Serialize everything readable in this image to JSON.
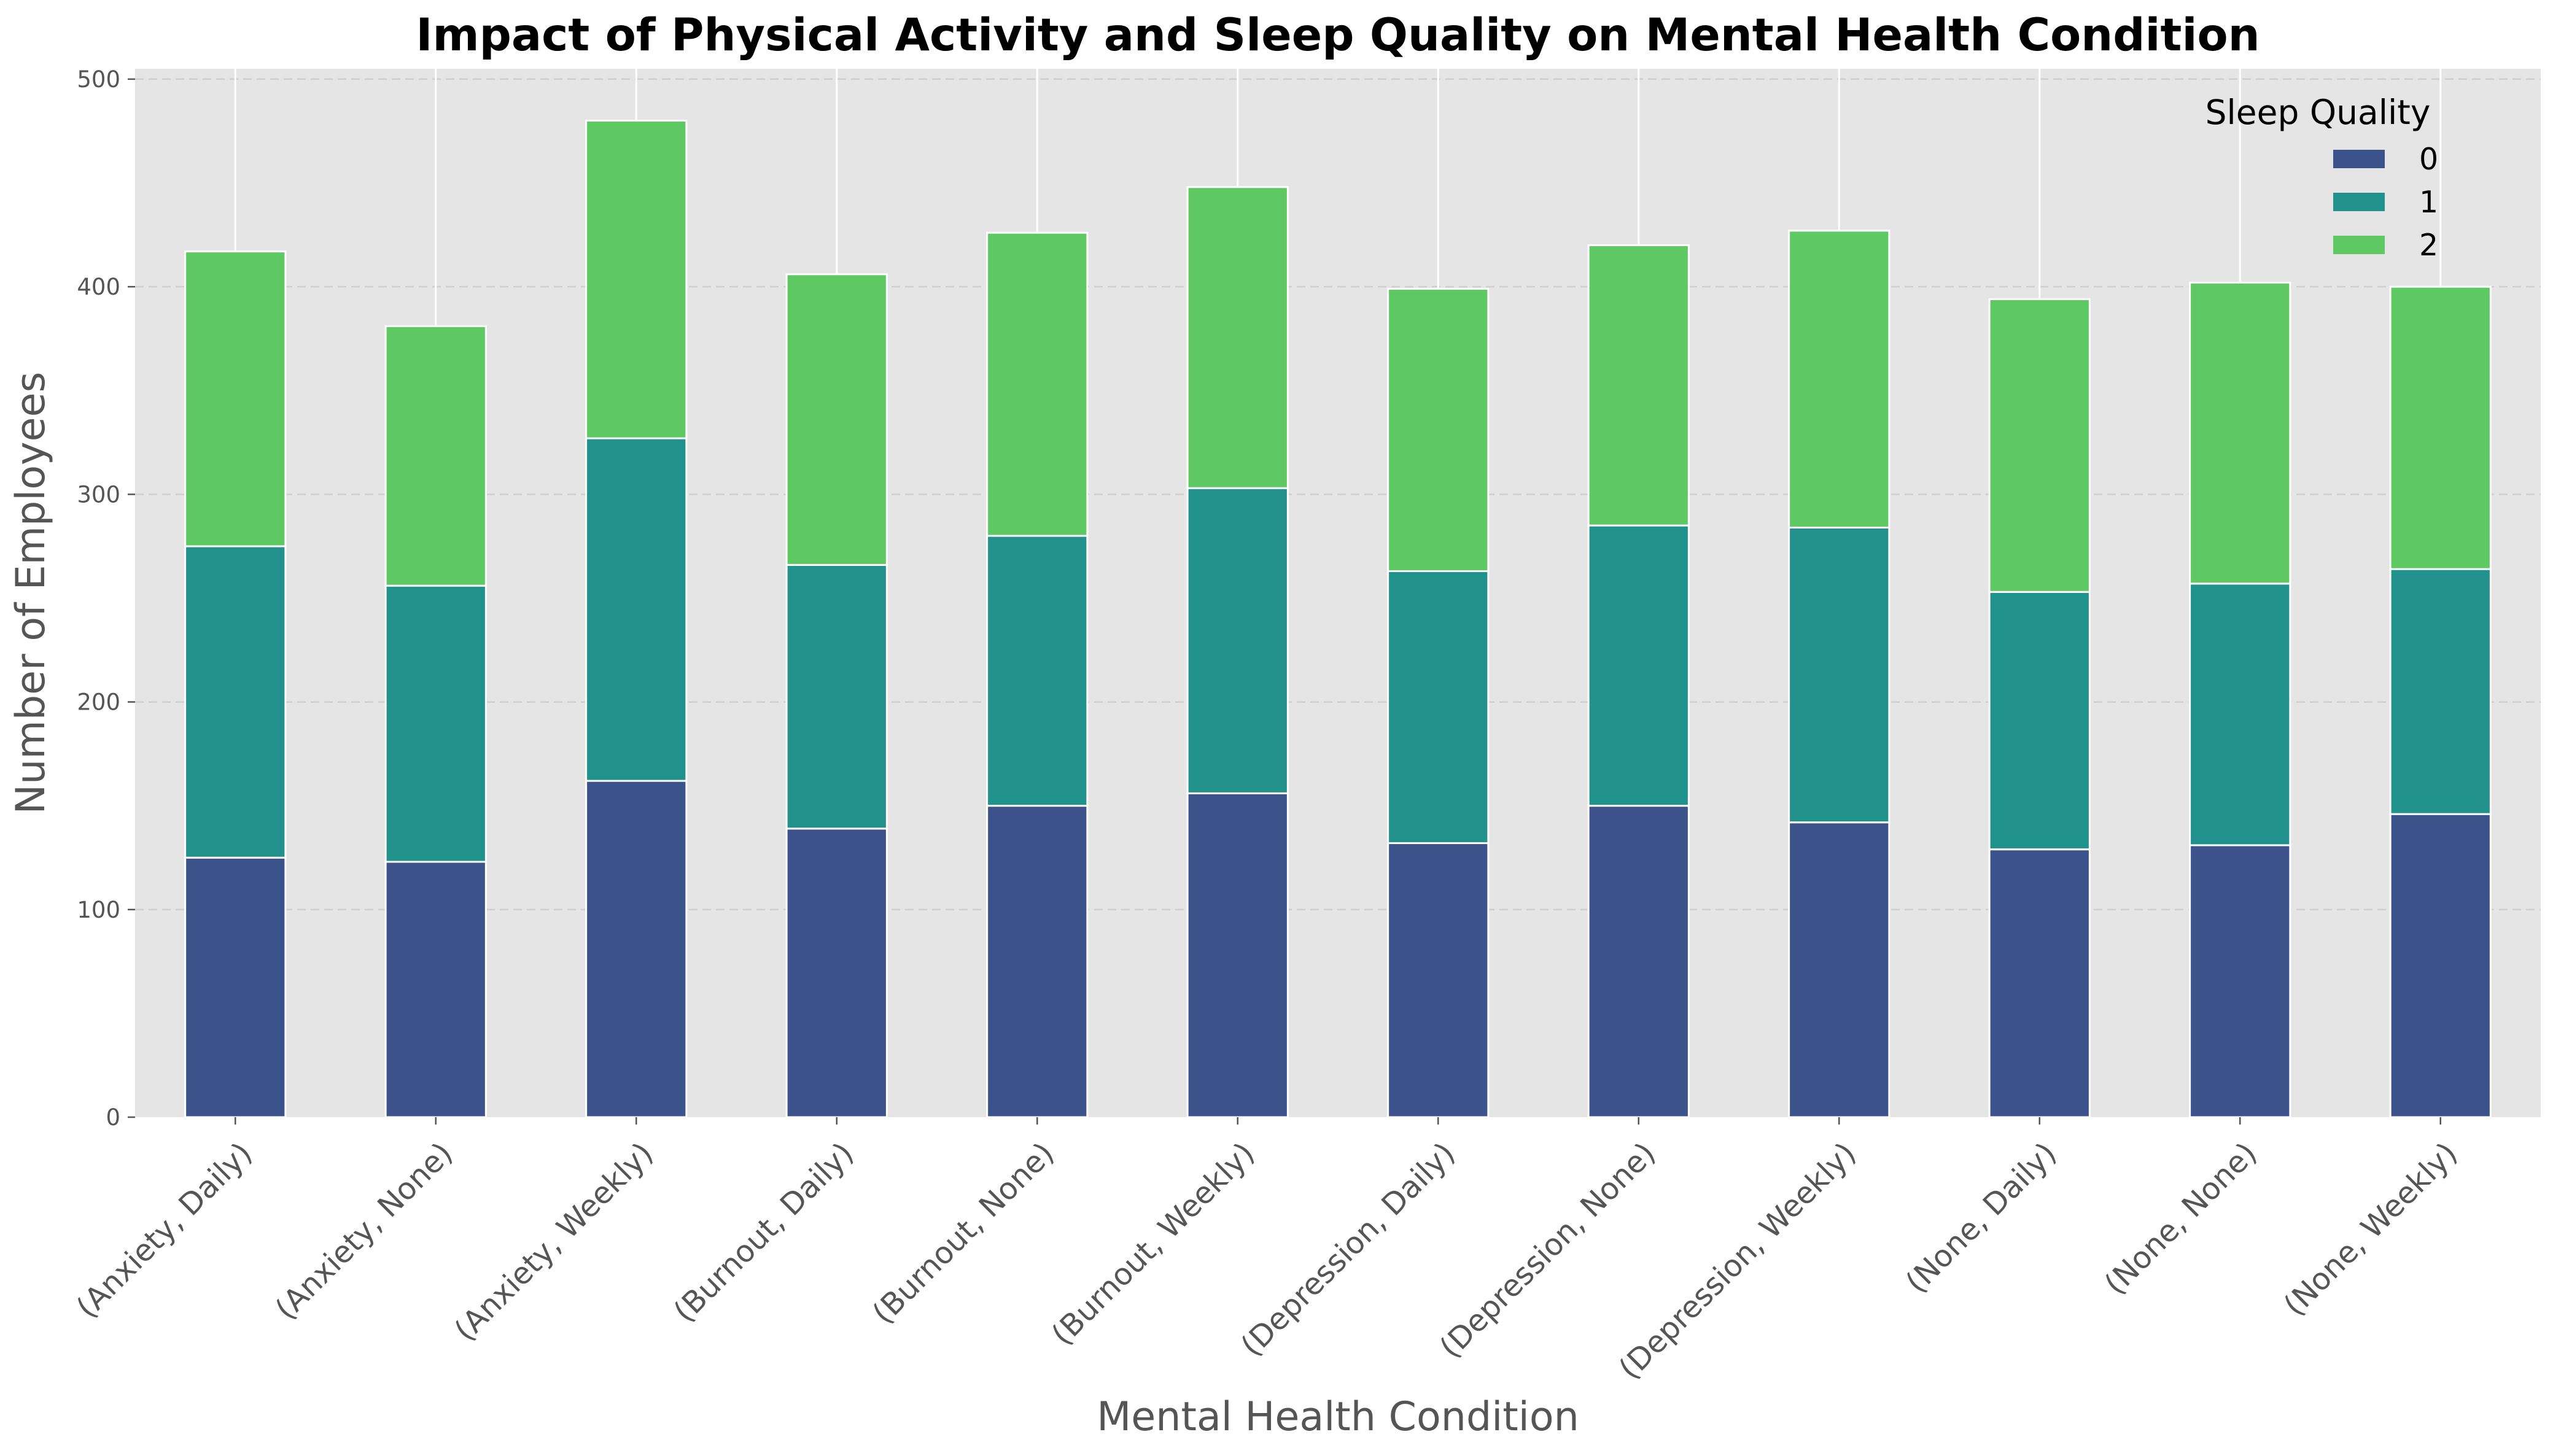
{
  "chart_data": {
    "type": "bar",
    "stacked": true,
    "title": "Impact of Physical Activity and Sleep Quality on Mental Health Condition",
    "xlabel": "Mental Health Condition",
    "ylabel": "Number of Employees",
    "ylim": [
      0,
      505
    ],
    "yticks": [
      0,
      100,
      200,
      300,
      400,
      500
    ],
    "grid": true,
    "categories": [
      "(Anxiety, Daily)",
      "(Anxiety, None)",
      "(Anxiety, Weekly)",
      "(Burnout, Daily)",
      "(Burnout, None)",
      "(Burnout, Weekly)",
      "(Depression, Daily)",
      "(Depression, None)",
      "(Depression, Weekly)",
      "(None, Daily)",
      "(None, None)",
      "(None, Weekly)"
    ],
    "legend": {
      "title": "Sleep Quality",
      "position": "top-right"
    },
    "series": [
      {
        "name": "0",
        "color": "#3b528b",
        "values": [
          125,
          123,
          162,
          139,
          150,
          156,
          132,
          150,
          142,
          129,
          131,
          146
        ]
      },
      {
        "name": "1",
        "color": "#21918c",
        "values": [
          150,
          133,
          165,
          127,
          130,
          147,
          131,
          135,
          142,
          124,
          126,
          118
        ]
      },
      {
        "name": "2",
        "color": "#5ec962",
        "values": [
          142,
          125,
          153,
          140,
          146,
          145,
          136,
          135,
          143,
          141,
          145,
          136
        ]
      }
    ]
  }
}
